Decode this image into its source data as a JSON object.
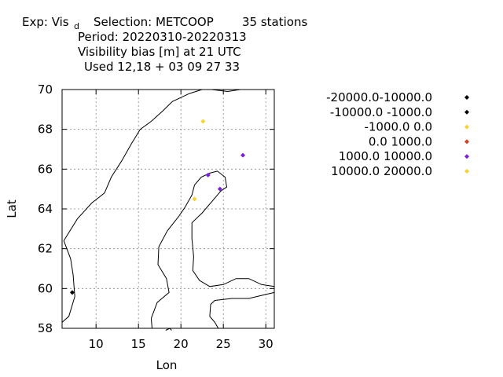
{
  "header": {
    "exp_prefix": "Exp: Vis",
    "exp_sub": "d",
    "selection": "Selection: METCOOP",
    "stations": "35 stations",
    "period": "Period: 20220310-20220313",
    "title": "Visibility bias [m] at  21 UTC",
    "used": "Used  12,18 + 03 09 27 33"
  },
  "colors": {
    "black": "#000000",
    "yellow": "#f5d430",
    "red": "#d43f1a",
    "purple": "#7a1fd9",
    "grid": "#888888"
  },
  "chart_data": {
    "type": "scatter",
    "xlabel": "Lon",
    "ylabel": "Lat",
    "xlim": [
      6,
      31
    ],
    "ylim": [
      58,
      70
    ],
    "xticks": [
      10,
      15,
      20,
      25,
      30
    ],
    "yticks": [
      58,
      60,
      62,
      64,
      66,
      68,
      70
    ],
    "grid": true,
    "legend_position": "right",
    "legend": [
      {
        "label": "-20000.0-10000.0",
        "color": "#000000"
      },
      {
        "label": "-10000.0 -1000.0",
        "color": "#000000"
      },
      {
        "label": "-1000.0 0.0",
        "color": "#f5d430"
      },
      {
        "label": "0.0 1000.0",
        "color": "#d43f1a"
      },
      {
        "label": "1000.0 10000.0",
        "color": "#7a1fd9"
      },
      {
        "label": "10000.0 20000.0",
        "color": "#f5d430"
      }
    ],
    "points": [
      {
        "lon": 7.2,
        "lat": 59.8,
        "color": "#000000"
      },
      {
        "lon": 22.6,
        "lat": 68.4,
        "color": "#f5d430"
      },
      {
        "lon": 21.6,
        "lat": 64.5,
        "color": "#f5d430"
      },
      {
        "lon": 27.3,
        "lat": 66.7,
        "color": "#7a1fd9"
      },
      {
        "lon": 23.2,
        "lat": 65.7,
        "color": "#7a1fd9"
      },
      {
        "lon": 24.6,
        "lat": 65.0,
        "color": "#7a1fd9"
      }
    ]
  }
}
